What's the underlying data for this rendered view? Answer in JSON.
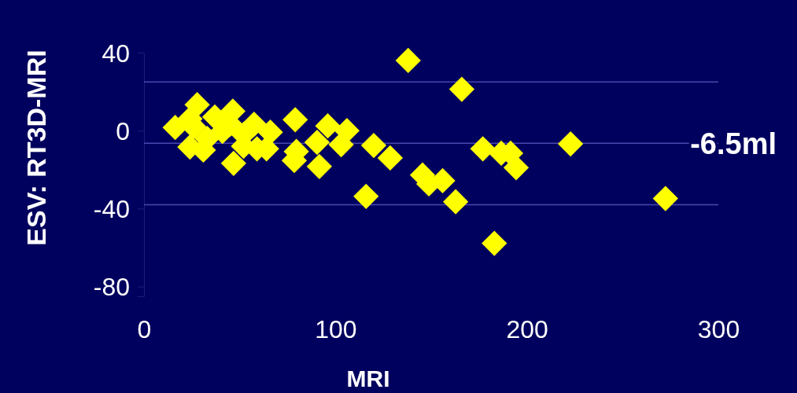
{
  "chart_data": {
    "type": "scatter",
    "xlabel": "MRI",
    "ylabel": "ESV: RT3D-MRI",
    "xlim": [
      0,
      300
    ],
    "ylim": [
      -85,
      40
    ],
    "xticks": [
      0,
      100,
      200,
      300
    ],
    "yticks": [
      40,
      0,
      -40,
      -80
    ],
    "marker": "diamond",
    "grid": false,
    "series": [
      {
        "color": "#ffff00",
        "x": [
          27.8,
          16.3,
          24,
          24,
          31,
          33,
          37,
          46.4,
          41,
          45,
          57.5,
          52,
          52,
          59,
          64,
          66,
          46.8,
          79,
          79.6,
          78.5,
          90.4,
          96,
          106,
          103,
          91.6,
          120,
          116,
          138,
          166,
          128.6,
          145.5,
          148.8,
          156,
          162.8,
          177,
          186.6,
          191.5,
          194.4,
          222.8,
          183,
          272.4,
          26
        ],
        "values": [
          13.3,
          1.6,
          6,
          -8.4,
          -10,
          -4,
          7,
          10,
          -0.4,
          3.3,
          3.3,
          -2,
          -8,
          -9.3,
          -9.3,
          -0.8,
          -16.8,
          5.6,
          -10.7,
          -15.3,
          -6,
          2.4,
          0,
          -7.2,
          -18.4,
          -7.6,
          -33.7,
          36,
          21.2,
          -14,
          -22.8,
          -27.3,
          -25.7,
          -36.5,
          -9.3,
          -11.6,
          -11.6,
          -19,
          -6.8,
          -57.8,
          -34.8,
          2
        ]
      }
    ],
    "ref_lines": [
      {
        "axis": "y",
        "value": 25,
        "color": "#4848b0"
      },
      {
        "axis": "y",
        "value": -6.5,
        "label": "-6.5ml",
        "color": "#4848b0"
      },
      {
        "axis": "y",
        "value": -38,
        "color": "#4848b0"
      }
    ]
  }
}
